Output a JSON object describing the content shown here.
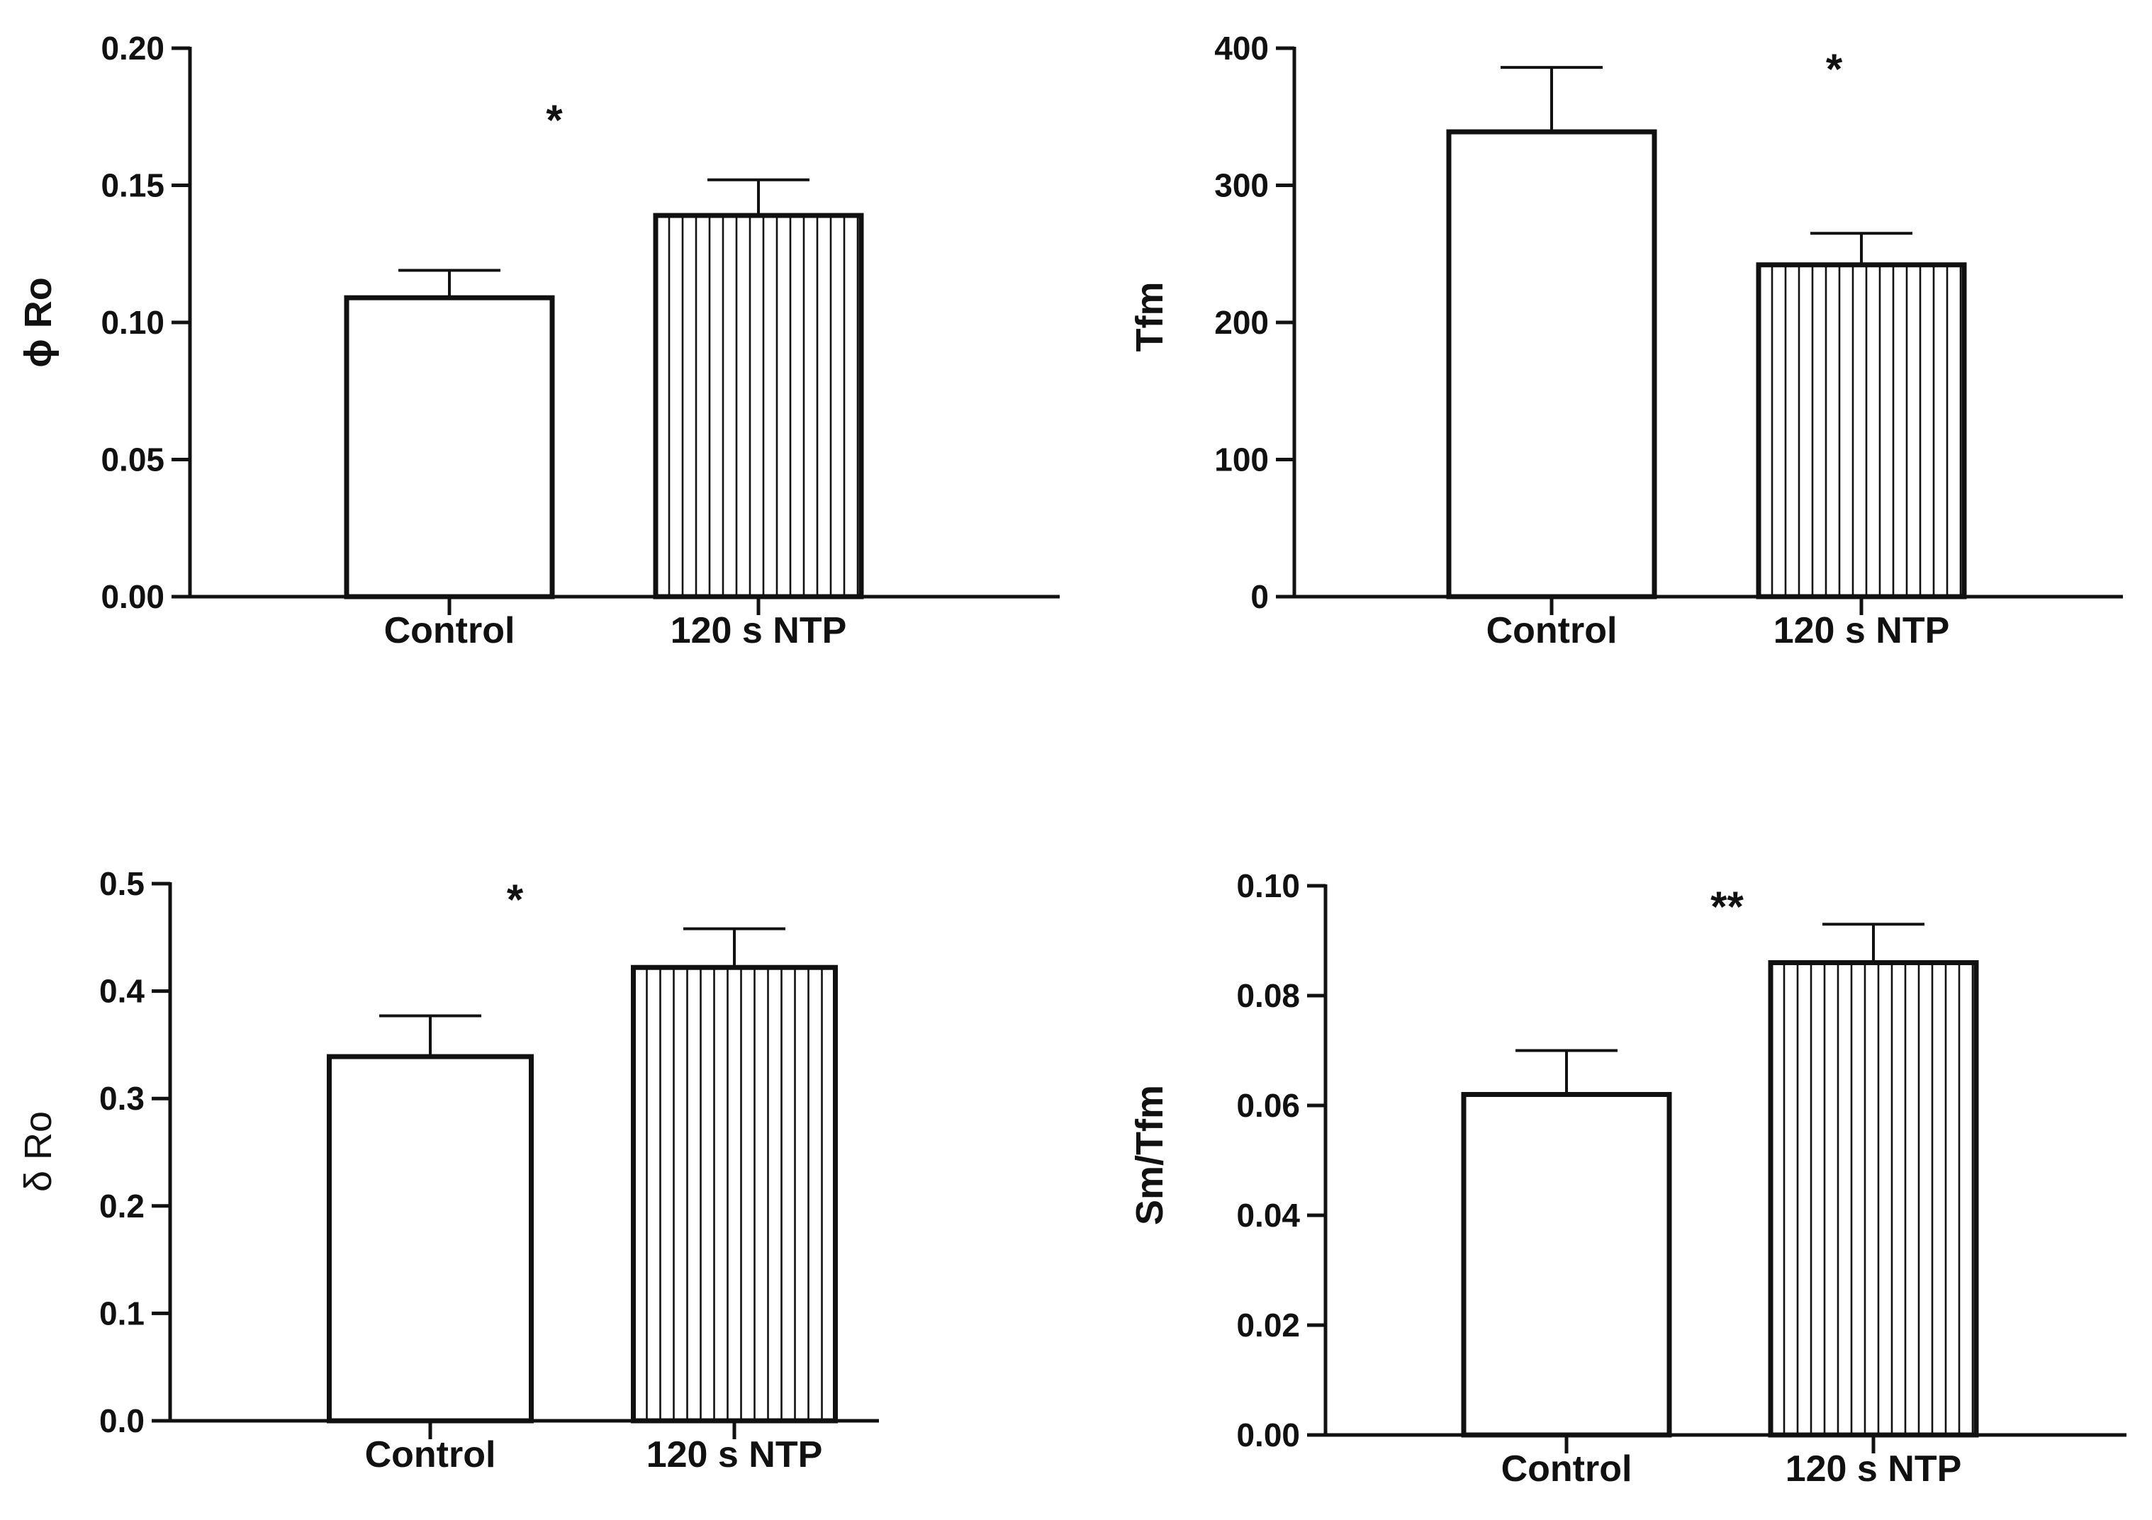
{
  "colors": {
    "stroke": "#111111",
    "background": "#ffffff"
  },
  "chart_data": [
    {
      "type": "bar",
      "panel": "top-left",
      "ylabel": "ϕ Ro",
      "categories": [
        "Control",
        "120 s NTP"
      ],
      "values": [
        0.109,
        0.139
      ],
      "errors": [
        0.01,
        0.013
      ],
      "fills": [
        "open",
        "vertical-hatch"
      ],
      "ylim": [
        0,
        0.2
      ],
      "yticks": [
        0,
        0.05,
        0.1,
        0.15,
        0.2
      ],
      "ytick_labels": [
        "0.00",
        "0.05",
        "0.10",
        "0.15",
        "0.20"
      ],
      "annotation": "*"
    },
    {
      "type": "bar",
      "panel": "top-right",
      "ylabel": "Tfm",
      "categories": [
        "Control",
        "120 s NTP"
      ],
      "values": [
        339,
        242
      ],
      "errors": [
        47,
        23
      ],
      "fills": [
        "open",
        "vertical-hatch"
      ],
      "ylim": [
        0,
        400
      ],
      "yticks": [
        0,
        100,
        200,
        300,
        400
      ],
      "ytick_labels": [
        "0",
        "100",
        "200",
        "300",
        "400"
      ],
      "annotation": "*"
    },
    {
      "type": "bar",
      "panel": "bottom-left",
      "ylabel": "δ Ro",
      "categories": [
        "Control",
        "120 s NTP"
      ],
      "values": [
        0.339,
        0.422
      ],
      "errors": [
        0.038,
        0.036
      ],
      "fills": [
        "open",
        "vertical-hatch"
      ],
      "ylim": [
        0,
        0.5
      ],
      "yticks": [
        0,
        0.1,
        0.2,
        0.3,
        0.4,
        0.5
      ],
      "ytick_labels": [
        "0.0",
        "0.1",
        "0.2",
        "0.3",
        "0.4",
        "0.5"
      ],
      "annotation": "*"
    },
    {
      "type": "bar",
      "panel": "bottom-right",
      "ylabel": "Sm/Tfm",
      "categories": [
        "Control",
        "120 s NTP"
      ],
      "values": [
        0.062,
        0.086
      ],
      "errors": [
        0.008,
        0.007
      ],
      "fills": [
        "open",
        "vertical-hatch"
      ],
      "ylim": [
        0,
        0.1
      ],
      "yticks": [
        0,
        0.02,
        0.04,
        0.06,
        0.08,
        0.1
      ],
      "ytick_labels": [
        "0.00",
        "0.02",
        "0.04",
        "0.06",
        "0.08",
        "0.10"
      ],
      "annotation": "**"
    }
  ]
}
